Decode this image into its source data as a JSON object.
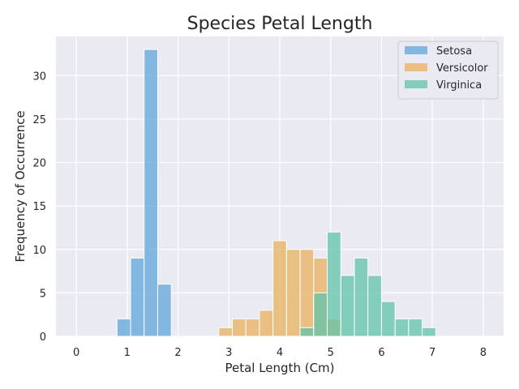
{
  "chart_data": {
    "type": "bar",
    "title": "Species Petal Length",
    "xlabel": "Petal Length (Cm)",
    "ylabel": "Frequency of Occurrence",
    "xlim": [
      -0.4,
      8.4
    ],
    "ylim": [
      0,
      34.5
    ],
    "xticks": [
      "0",
      "1",
      "2",
      "3",
      "4",
      "5",
      "6",
      "7",
      "8"
    ],
    "yticks": [
      "0",
      "5",
      "10",
      "15",
      "20",
      "25",
      "30"
    ],
    "grid": true,
    "legend_position": "top-right",
    "series": [
      {
        "name": "Setosa",
        "color": "#5da5da",
        "bins": [
          {
            "x0": 0.8,
            "x1": 1.067,
            "count": 2
          },
          {
            "x0": 1.067,
            "x1": 1.333,
            "count": 9
          },
          {
            "x0": 1.333,
            "x1": 1.6,
            "count": 33
          },
          {
            "x0": 1.6,
            "x1": 1.867,
            "count": 6
          }
        ]
      },
      {
        "name": "Versicolor",
        "color": "#e8b05e",
        "bins": [
          {
            "x0": 2.8,
            "x1": 3.067,
            "count": 1
          },
          {
            "x0": 3.067,
            "x1": 3.333,
            "count": 2
          },
          {
            "x0": 3.333,
            "x1": 3.6,
            "count": 2
          },
          {
            "x0": 3.6,
            "x1": 3.867,
            "count": 3
          },
          {
            "x0": 3.867,
            "x1": 4.133,
            "count": 11
          },
          {
            "x0": 4.133,
            "x1": 4.4,
            "count": 10
          },
          {
            "x0": 4.4,
            "x1": 4.667,
            "count": 10
          },
          {
            "x0": 4.667,
            "x1": 4.933,
            "count": 9
          },
          {
            "x0": 4.933,
            "x1": 5.2,
            "count": 2
          }
        ]
      },
      {
        "name": "Virginica",
        "color": "#5fc3a8",
        "bins": [
          {
            "x0": 4.4,
            "x1": 4.667,
            "count": 1
          },
          {
            "x0": 4.667,
            "x1": 4.933,
            "count": 5
          },
          {
            "x0": 4.933,
            "x1": 5.2,
            "count": 12
          },
          {
            "x0": 5.2,
            "x1": 5.467,
            "count": 7
          },
          {
            "x0": 5.467,
            "x1": 5.733,
            "count": 9
          },
          {
            "x0": 5.733,
            "x1": 6.0,
            "count": 7
          },
          {
            "x0": 6.0,
            "x1": 6.267,
            "count": 4
          },
          {
            "x0": 6.267,
            "x1": 6.533,
            "count": 2
          },
          {
            "x0": 6.533,
            "x1": 6.8,
            "count": 2
          },
          {
            "x0": 6.8,
            "x1": 7.067,
            "count": 1
          }
        ]
      }
    ]
  }
}
